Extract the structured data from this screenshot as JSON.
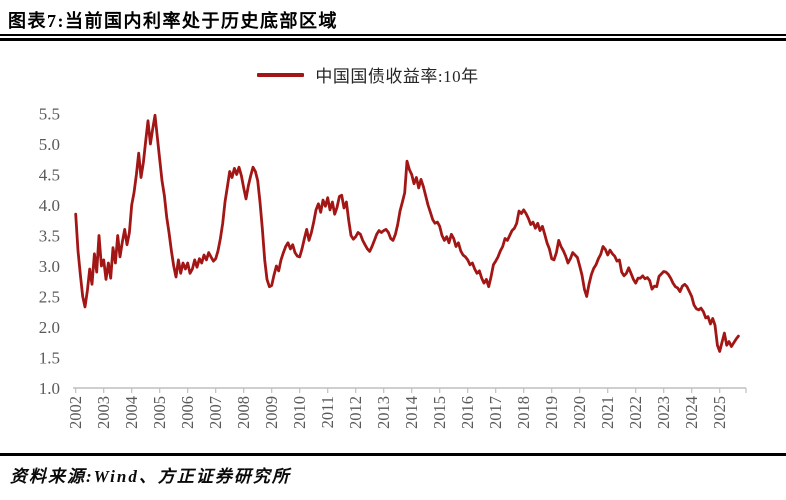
{
  "header": {
    "title": "图表7:当前国内利率处于历史底部区域"
  },
  "legend": {
    "label": "中国国债收益率:10年"
  },
  "source": {
    "text": "资料来源:Wind、方正证券研究所"
  },
  "colors": {
    "line": "#a21715",
    "axis": "#bfbfbf",
    "tick_label": "#595959"
  },
  "chart_data": {
    "type": "line",
    "title": "图表7:当前国内利率处于历史底部区域",
    "xlabel": "",
    "ylabel": "",
    "ylim": [
      1.0,
      5.5
    ],
    "y_ticks": [
      1.0,
      1.5,
      2.0,
      2.5,
      3.0,
      3.5,
      4.0,
      4.5,
      5.0,
      5.5
    ],
    "x_ticks": [
      2002,
      2003,
      2004,
      2005,
      2006,
      2007,
      2008,
      2009,
      2010,
      2011,
      2012,
      2013,
      2014,
      2015,
      2016,
      2017,
      2018,
      2019,
      2020,
      2021,
      2022,
      2023,
      2024,
      2025
    ],
    "grid": false,
    "legend_position": "top-center",
    "series": [
      {
        "name": "中国国债收益率:10年",
        "color": "#a21715",
        "start_year": 2002,
        "points_per_year": 12,
        "values": [
          3.85,
          3.25,
          2.85,
          2.5,
          2.33,
          2.6,
          2.95,
          2.7,
          3.2,
          2.9,
          3.5,
          3.0,
          3.1,
          2.78,
          3.05,
          2.8,
          3.3,
          3.05,
          3.5,
          3.15,
          3.4,
          3.6,
          3.35,
          3.55,
          4.0,
          4.2,
          4.5,
          4.85,
          4.45,
          4.7,
          5.05,
          5.38,
          5.0,
          5.25,
          5.47,
          5.1,
          4.75,
          4.4,
          4.15,
          3.8,
          3.55,
          3.25,
          3.0,
          2.82,
          3.1,
          2.88,
          3.05,
          2.95,
          3.05,
          2.88,
          2.95,
          3.1,
          2.98,
          3.12,
          3.05,
          3.18,
          3.1,
          3.22,
          3.15,
          3.08,
          3.12,
          3.25,
          3.45,
          3.7,
          4.05,
          4.3,
          4.55,
          4.45,
          4.6,
          4.5,
          4.62,
          4.48,
          4.28,
          4.1,
          4.32,
          4.48,
          4.62,
          4.55,
          4.4,
          4.05,
          3.6,
          3.1,
          2.78,
          2.66,
          2.68,
          2.85,
          3.0,
          2.92,
          3.1,
          3.22,
          3.32,
          3.38,
          3.28,
          3.35,
          3.22,
          3.16,
          3.15,
          3.28,
          3.45,
          3.6,
          3.42,
          3.55,
          3.72,
          3.92,
          4.02,
          3.88,
          4.08,
          3.98,
          4.12,
          3.92,
          4.05,
          3.85,
          3.96,
          4.14,
          4.16,
          3.95,
          4.05,
          3.75,
          3.5,
          3.44,
          3.48,
          3.55,
          3.52,
          3.42,
          3.35,
          3.28,
          3.24,
          3.32,
          3.42,
          3.52,
          3.58,
          3.55,
          3.58,
          3.6,
          3.55,
          3.45,
          3.42,
          3.52,
          3.68,
          3.9,
          4.05,
          4.2,
          4.72,
          4.58,
          4.5,
          4.35,
          4.45,
          4.28,
          4.42,
          4.3,
          4.15,
          4.0,
          3.88,
          3.76,
          3.7,
          3.72,
          3.65,
          3.5,
          3.42,
          3.48,
          3.38,
          3.52,
          3.45,
          3.32,
          3.38,
          3.25,
          3.18,
          3.15,
          3.1,
          3.02,
          3.05,
          2.95,
          2.88,
          2.92,
          2.8,
          2.72,
          2.78,
          2.66,
          2.82,
          3.02,
          3.08,
          3.15,
          3.25,
          3.32,
          3.45,
          3.42,
          3.5,
          3.58,
          3.62,
          3.7,
          3.9,
          3.86,
          3.92,
          3.86,
          3.78,
          3.68,
          3.72,
          3.62,
          3.7,
          3.58,
          3.65,
          3.52,
          3.38,
          3.28,
          3.12,
          3.1,
          3.22,
          3.42,
          3.32,
          3.25,
          3.16,
          3.05,
          3.12,
          3.22,
          3.18,
          3.14,
          3.0,
          2.85,
          2.62,
          2.5,
          2.7,
          2.86,
          2.96,
          3.02,
          3.12,
          3.19,
          3.32,
          3.27,
          3.18,
          3.26,
          3.2,
          3.16,
          3.08,
          3.1,
          2.9,
          2.84,
          2.88,
          2.97,
          2.88,
          2.78,
          2.72,
          2.8,
          2.8,
          2.84,
          2.79,
          2.81,
          2.76,
          2.62,
          2.67,
          2.66,
          2.83,
          2.87,
          2.91,
          2.9,
          2.86,
          2.8,
          2.72,
          2.66,
          2.64,
          2.58,
          2.67,
          2.7,
          2.66,
          2.58,
          2.5,
          2.36,
          2.3,
          2.28,
          2.31,
          2.25,
          2.15,
          2.17,
          2.05,
          2.14,
          2.03,
          1.7,
          1.6,
          1.75,
          1.9,
          1.7,
          1.76,
          1.68,
          1.74,
          1.8,
          1.85
        ]
      }
    ]
  }
}
